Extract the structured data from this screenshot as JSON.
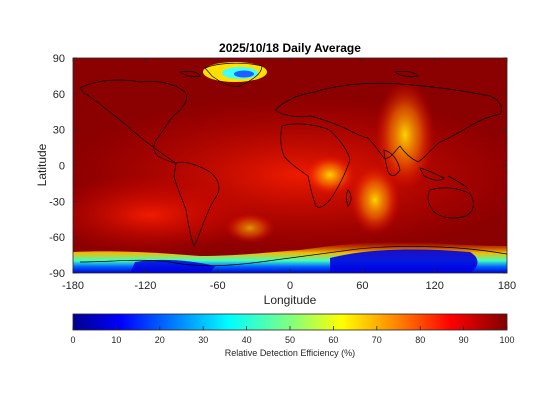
{
  "map": {
    "title": "2025/10/18 Daily Average",
    "xlabel": "Longitude",
    "ylabel": "Latitude",
    "xticks": [
      "-180",
      "-120",
      "-60",
      "0",
      "60",
      "120",
      "180"
    ],
    "yticks": [
      "90",
      "60",
      "30",
      "0",
      "-30",
      "-60",
      "-90"
    ],
    "background_color": "#8b0000"
  },
  "colorbar": {
    "label": "Relative Detection Efficiency (%)",
    "ticks": [
      "0",
      "10",
      "20",
      "30",
      "40",
      "50",
      "60",
      "70",
      "80",
      "90",
      "100"
    ],
    "colormap": [
      "#00008f",
      "#0000ff",
      "#0080ff",
      "#00ffff",
      "#80ff80",
      "#ffff00",
      "#ff8000",
      "#ff0000",
      "#800000"
    ]
  }
}
